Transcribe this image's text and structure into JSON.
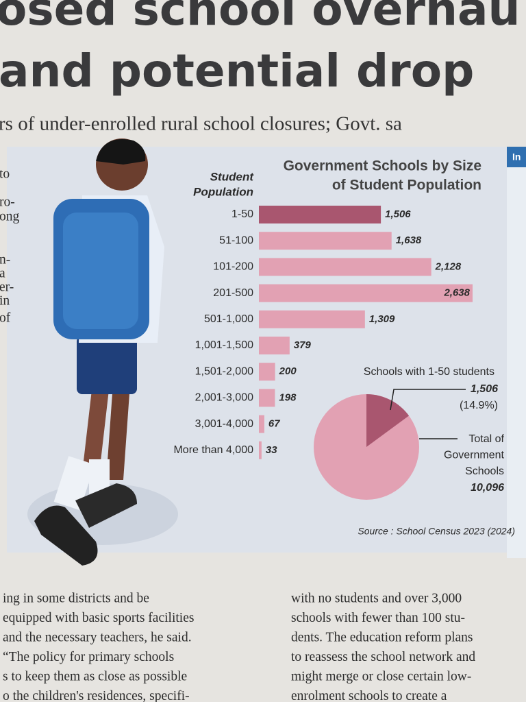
{
  "headline": [
    "osed school overhau",
    "and potential drop"
  ],
  "subheadline": "rs of under-enrolled rural school closures; Govt. sa",
  "side_fragments": [
    "to",
    "ro-",
    "ong",
    "n-",
    "a",
    "er-",
    "in",
    "of"
  ],
  "side_box_label": "In",
  "chart_data": [
    {
      "type": "bar",
      "title": [
        "Government Schools by Size",
        "of Student Population"
      ],
      "category_axis_label": [
        "Student",
        "Population"
      ],
      "categories": [
        "1-50",
        "51-100",
        "101-200",
        "201-500",
        "501-1,000",
        "1,001-1,500",
        "1,501-2,000",
        "2,001-3,000",
        "3,001-4,000",
        "More than 4,000"
      ],
      "values": [
        1506,
        1638,
        2128,
        2638,
        1309,
        379,
        200,
        198,
        67,
        33
      ],
      "value_labels": [
        "1,506",
        "1,638",
        "2,128",
        "2,638",
        "1,309",
        "379",
        "200",
        "198",
        "67",
        "33"
      ],
      "colors": [
        "#a9566f",
        "#e2a1b3",
        "#e2a1b3",
        "#e2a1b3",
        "#e2a1b3",
        "#e2a1b3",
        "#e2a1b3",
        "#e2a1b3",
        "#e2a1b3",
        "#e2a1b3"
      ]
    },
    {
      "type": "pie",
      "slice": {
        "label": "Schools with 1-50 students",
        "value": 1506,
        "value_label": "1,506",
        "percent": 14.9,
        "percent_label": "(14.9%)",
        "color": "#a9566f"
      },
      "total": {
        "label": [
          "Total of",
          "Government",
          "Schools"
        ],
        "value": 10096,
        "value_label": "10,096",
        "color": "#e2a1b3"
      }
    }
  ],
  "source": "Source : School Census 2023 (2024)",
  "columns": [
    [
      "ing in some districts and be",
      "equipped with basic sports facilities",
      "and the necessary teachers, he said.",
      "“The policy for primary schools",
      "s to keep them as close as possible",
      "o the children's residences, specifi-"
    ],
    [
      "with no students and over 3,000",
      "schools with fewer than 100 stu-",
      "dents. The education reform plans",
      "to reassess the school network and",
      "might merge or close certain low-",
      "enrolment schools to create a"
    ]
  ]
}
